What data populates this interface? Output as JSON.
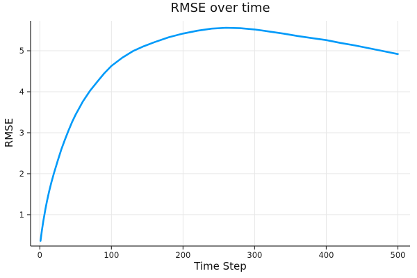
{
  "chart_data": {
    "type": "line",
    "title": "RMSE over time",
    "xlabel": "Time Step",
    "ylabel": "RMSE",
    "x": [
      1,
      3,
      5,
      8,
      10,
      13,
      16,
      20,
      25,
      30,
      35,
      40,
      45,
      50,
      60,
      70,
      80,
      90,
      100,
      115,
      130,
      145,
      160,
      180,
      200,
      220,
      240,
      260,
      280,
      300,
      320,
      340,
      360,
      380,
      400,
      420,
      440,
      460,
      480,
      500
    ],
    "y": [
      0.36,
      0.63,
      0.85,
      1.15,
      1.33,
      1.57,
      1.78,
      2.03,
      2.32,
      2.59,
      2.83,
      3.05,
      3.26,
      3.44,
      3.76,
      4.02,
      4.24,
      4.45,
      4.63,
      4.83,
      4.99,
      5.11,
      5.21,
      5.33,
      5.42,
      5.49,
      5.54,
      5.56,
      5.55,
      5.52,
      5.47,
      5.42,
      5.36,
      5.31,
      5.26,
      5.19,
      5.13,
      5.06,
      4.99,
      4.92
    ],
    "xticks": [
      0,
      100,
      200,
      300,
      400,
      500
    ],
    "yticks": [
      1,
      2,
      3,
      4,
      5
    ],
    "xlim": [
      -12.9,
      517.0
    ],
    "ylim": [
      0.235,
      5.73
    ],
    "grid": true,
    "legend": "none",
    "line_color": "#009af9",
    "line_width": 2.6,
    "grid_color": "#e7e7e7",
    "axis_color": "#333333",
    "background": "#ffffff"
  }
}
